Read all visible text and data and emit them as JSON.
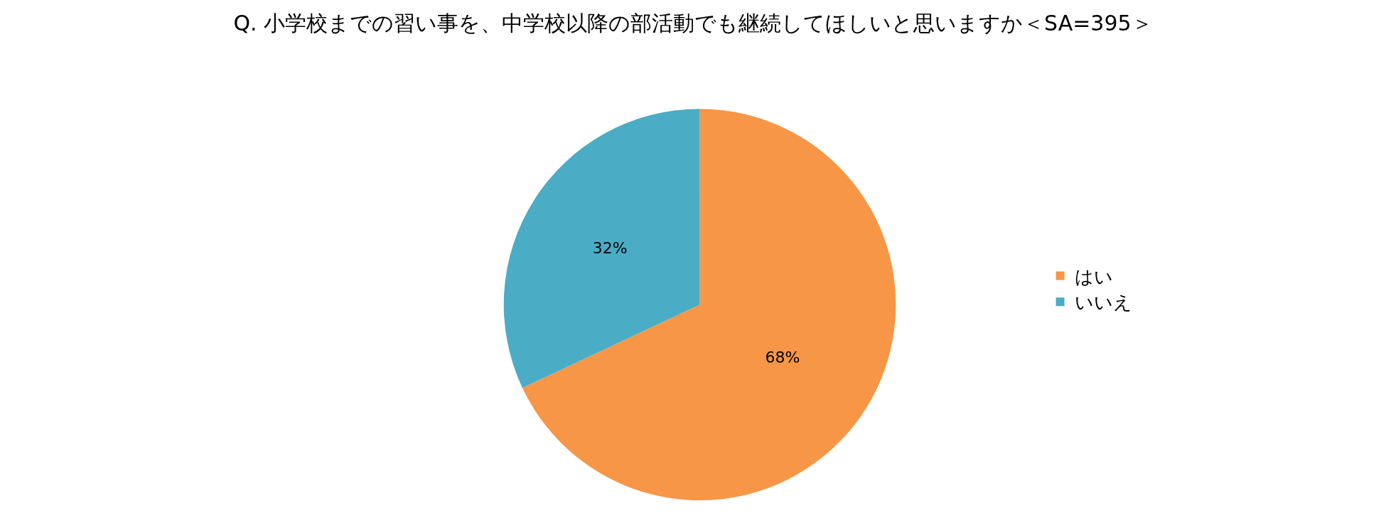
{
  "chart_data": {
    "type": "pie",
    "title": "Q. 小学校までの習い事を、中学校以降の部活動でも継続してほしいと思いますか＜SA=395＞",
    "categories": [
      "はい",
      "いいえ"
    ],
    "values": [
      68,
      32
    ],
    "colors": [
      "#f79646",
      "#4bacc6"
    ],
    "value_labels": [
      "68%",
      "32%"
    ],
    "legend": "right"
  }
}
